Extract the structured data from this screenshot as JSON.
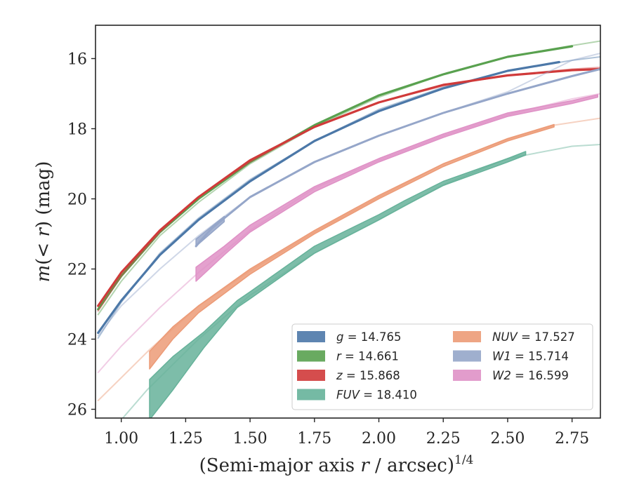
{
  "chart_data": {
    "type": "line",
    "xlabel": "(Semi-major axis r / arcsec)",
    "xlabel_italic": "r",
    "xlabel_superscript": "1/4",
    "ylabel": "m(< r) (mag)",
    "ylabel_parts": {
      "pre": "m",
      "mid": "(< ",
      "var": "r",
      "post": ") (mag)"
    },
    "xlim": [
      0.9,
      2.86
    ],
    "ylim": [
      26.25,
      15.05
    ],
    "y_inverted": true,
    "xticks": [
      1.0,
      1.25,
      1.5,
      1.75,
      2.0,
      2.25,
      2.5,
      2.75
    ],
    "xtick_labels": [
      "1.00",
      "1.25",
      "1.50",
      "1.75",
      "2.00",
      "2.25",
      "2.50",
      "2.75"
    ],
    "yticks": [
      16,
      18,
      20,
      22,
      24,
      26
    ],
    "ytick_labels": [
      "16",
      "18",
      "20",
      "22",
      "24",
      "26"
    ],
    "grid": false,
    "legend_position": "bottom-right",
    "legend_columns": 2,
    "series": [
      {
        "name": "g",
        "value": "14.765",
        "color": "#4c78a8",
        "faint": [
          [
            0.91,
            23.97
          ],
          [
            1.0,
            22.95
          ],
          [
            1.15,
            21.55
          ],
          [
            1.3,
            20.55
          ],
          [
            1.5,
            19.45
          ],
          [
            1.75,
            18.35
          ],
          [
            2.0,
            17.45
          ],
          [
            2.25,
            16.82
          ],
          [
            2.5,
            16.35
          ],
          [
            2.75,
            16.05
          ],
          [
            2.86,
            15.95
          ]
        ],
        "solid": [
          [
            0.91,
            23.82
          ],
          [
            1.0,
            22.9
          ],
          [
            1.15,
            21.6
          ],
          [
            1.3,
            20.6
          ],
          [
            1.5,
            19.5
          ],
          [
            1.75,
            18.35
          ],
          [
            2.0,
            17.5
          ],
          [
            2.25,
            16.85
          ],
          [
            2.5,
            16.35
          ],
          [
            2.7,
            16.1
          ]
        ],
        "band": [],
        "width": 3.2
      },
      {
        "name": "r",
        "value": "14.661",
        "color": "#59a14f",
        "faint": [
          [
            0.91,
            23.3
          ],
          [
            1.0,
            22.35
          ],
          [
            1.15,
            21.05
          ],
          [
            1.3,
            20.1
          ],
          [
            1.5,
            19.0
          ],
          [
            1.75,
            17.95
          ],
          [
            2.0,
            17.1
          ],
          [
            2.25,
            16.45
          ],
          [
            2.5,
            15.95
          ],
          [
            2.75,
            15.63
          ],
          [
            2.86,
            15.5
          ]
        ],
        "solid": [
          [
            0.91,
            23.15
          ],
          [
            1.0,
            22.2
          ],
          [
            1.15,
            20.95
          ],
          [
            1.3,
            20.0
          ],
          [
            1.5,
            18.95
          ],
          [
            1.75,
            17.9
          ],
          [
            2.0,
            17.05
          ],
          [
            2.25,
            16.45
          ],
          [
            2.5,
            15.95
          ],
          [
            2.75,
            15.65
          ]
        ],
        "band": [],
        "width": 3.2
      },
      {
        "name": "z",
        "value": "15.868",
        "color": "#d03a3a",
        "faint": [
          [
            0.91,
            23.2
          ],
          [
            1.0,
            22.2
          ],
          [
            1.15,
            20.95
          ],
          [
            1.3,
            19.95
          ],
          [
            1.5,
            18.95
          ],
          [
            1.75,
            17.95
          ],
          [
            2.0,
            17.25
          ],
          [
            2.25,
            16.78
          ],
          [
            2.5,
            16.48
          ],
          [
            2.75,
            16.3
          ],
          [
            2.86,
            16.25
          ]
        ],
        "solid": [
          [
            0.91,
            23.05
          ],
          [
            1.0,
            22.1
          ],
          [
            1.15,
            20.9
          ],
          [
            1.3,
            19.95
          ],
          [
            1.5,
            18.9
          ],
          [
            1.75,
            17.95
          ],
          [
            2.0,
            17.25
          ],
          [
            2.25,
            16.75
          ],
          [
            2.5,
            16.48
          ],
          [
            2.75,
            16.33
          ],
          [
            2.86,
            16.3
          ]
        ],
        "band": [],
        "width": 3.2
      },
      {
        "name": "FUV",
        "value": "18.410",
        "color": "#66b29a",
        "faint": [
          [
            1.0,
            26.3
          ],
          [
            1.1,
            25.45
          ],
          [
            1.3,
            24.0
          ],
          [
            1.5,
            22.75
          ],
          [
            1.75,
            21.55
          ],
          [
            2.0,
            20.6
          ],
          [
            2.25,
            19.6
          ],
          [
            2.5,
            18.85
          ],
          [
            2.75,
            18.5
          ],
          [
            2.86,
            18.45
          ]
        ],
        "solid": [],
        "band": [
          [
            1.11,
            25.15,
            26.3
          ],
          [
            1.2,
            24.5,
            25.45
          ],
          [
            1.32,
            23.8,
            24.25
          ],
          [
            1.45,
            22.9,
            23.1
          ],
          [
            1.5,
            22.65,
            22.85
          ],
          [
            1.75,
            21.35,
            21.55
          ],
          [
            2.0,
            20.45,
            20.6
          ],
          [
            2.1,
            20.05,
            20.2
          ],
          [
            2.25,
            19.5,
            19.62
          ],
          [
            2.5,
            18.85,
            18.95
          ],
          [
            2.57,
            18.65,
            18.75
          ]
        ],
        "width": 3.0
      },
      {
        "name": "NUV",
        "value": "17.527",
        "color": "#ec9b77",
        "faint": [
          [
            0.91,
            25.75
          ],
          [
            1.0,
            25.1
          ],
          [
            1.11,
            24.3
          ],
          [
            1.3,
            23.05
          ],
          [
            1.5,
            22.05
          ],
          [
            1.75,
            20.95
          ],
          [
            2.0,
            19.95
          ],
          [
            2.25,
            19.0
          ],
          [
            2.5,
            18.3
          ],
          [
            2.68,
            17.9
          ],
          [
            2.86,
            17.7
          ]
        ],
        "solid": [],
        "band": [
          [
            1.11,
            24.35,
            24.85
          ],
          [
            1.2,
            23.65,
            24.0
          ],
          [
            1.3,
            23.05,
            23.25
          ],
          [
            1.5,
            22.0,
            22.15
          ],
          [
            1.75,
            20.9,
            21.0
          ],
          [
            2.0,
            19.9,
            20.0
          ],
          [
            2.25,
            19.0,
            19.08
          ],
          [
            2.5,
            18.28,
            18.35
          ],
          [
            2.68,
            17.88,
            17.95
          ]
        ],
        "width": 3.0
      },
      {
        "name": "W1",
        "value": "15.714",
        "color": "#95a6c9",
        "faint": [
          [
            0.91,
            23.9
          ],
          [
            1.0,
            23.05
          ],
          [
            1.15,
            22.0
          ],
          [
            1.3,
            21.05
          ],
          [
            1.5,
            19.95
          ],
          [
            1.75,
            18.95
          ],
          [
            2.0,
            18.2
          ],
          [
            2.25,
            17.55
          ],
          [
            2.5,
            16.95
          ],
          [
            2.75,
            16.05
          ],
          [
            2.86,
            15.85
          ]
        ],
        "solid": [
          [
            1.29,
            21.35
          ],
          [
            1.35,
            20.85
          ],
          [
            1.5,
            19.95
          ],
          [
            1.75,
            18.95
          ],
          [
            2.0,
            18.2
          ],
          [
            2.25,
            17.55
          ],
          [
            2.5,
            17.0
          ],
          [
            2.75,
            16.5
          ],
          [
            2.86,
            16.3
          ]
        ],
        "band": [
          [
            1.29,
            21.15,
            21.35
          ],
          [
            1.4,
            20.5,
            20.65
          ]
        ],
        "width": 3.0
      },
      {
        "name": "W2",
        "value": "16.599",
        "color": "#df91c6",
        "faint": [
          [
            0.91,
            24.95
          ],
          [
            1.0,
            24.2
          ],
          [
            1.15,
            23.1
          ],
          [
            1.3,
            22.1
          ],
          [
            1.5,
            20.9
          ],
          [
            1.75,
            19.7
          ],
          [
            2.0,
            18.9
          ],
          [
            2.25,
            18.2
          ],
          [
            2.5,
            17.6
          ],
          [
            2.75,
            17.15
          ],
          [
            2.86,
            17.0
          ]
        ],
        "solid": [],
        "band": [
          [
            1.29,
            21.95,
            22.35
          ],
          [
            1.4,
            21.35,
            21.6
          ],
          [
            1.5,
            20.75,
            20.95
          ],
          [
            1.75,
            19.65,
            19.8
          ],
          [
            2.0,
            18.85,
            18.95
          ],
          [
            2.25,
            18.15,
            18.25
          ],
          [
            2.5,
            17.55,
            17.65
          ],
          [
            2.75,
            17.2,
            17.28
          ],
          [
            2.85,
            17.03,
            17.1
          ]
        ],
        "width": 3.0
      }
    ]
  }
}
